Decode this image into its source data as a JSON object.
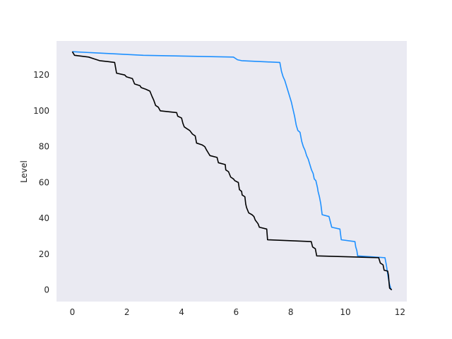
{
  "chart_data": {
    "type": "line",
    "title": "",
    "xlabel": "",
    "ylabel": "Level",
    "xlim": [
      -0.58,
      12.25
    ],
    "ylim": [
      -6.5,
      139
    ],
    "x_ticks": [
      0,
      2,
      4,
      6,
      8,
      10,
      12
    ],
    "y_ticks": [
      0,
      20,
      40,
      60,
      80,
      100,
      120
    ],
    "grid": false,
    "background": "#eaeaf2",
    "series": [
      {
        "color": "#1e90ff",
        "points": [
          [
            0.0,
            133
          ],
          [
            2.6,
            131
          ],
          [
            5.9,
            130
          ],
          [
            6.05,
            128.5
          ],
          [
            6.2,
            128
          ],
          [
            7.6,
            127
          ],
          [
            7.66,
            122
          ],
          [
            7.72,
            119
          ],
          [
            7.78,
            117
          ],
          [
            7.84,
            114
          ],
          [
            7.9,
            111
          ],
          [
            7.96,
            108
          ],
          [
            8.02,
            105
          ],
          [
            8.08,
            101
          ],
          [
            8.14,
            97
          ],
          [
            8.2,
            92
          ],
          [
            8.26,
            89
          ],
          [
            8.34,
            88
          ],
          [
            8.4,
            83
          ],
          [
            8.46,
            80
          ],
          [
            8.52,
            78
          ],
          [
            8.58,
            75
          ],
          [
            8.64,
            73
          ],
          [
            8.7,
            70
          ],
          [
            8.76,
            67
          ],
          [
            8.82,
            65
          ],
          [
            8.86,
            62
          ],
          [
            8.92,
            61
          ],
          [
            8.98,
            57
          ],
          [
            9.0,
            55
          ],
          [
            9.05,
            52
          ],
          [
            9.1,
            48
          ],
          [
            9.15,
            42
          ],
          [
            9.4,
            41
          ],
          [
            9.5,
            35
          ],
          [
            9.8,
            34
          ],
          [
            9.85,
            28
          ],
          [
            10.35,
            27
          ],
          [
            10.38,
            24
          ],
          [
            10.42,
            22
          ],
          [
            10.45,
            19
          ],
          [
            11.45,
            18
          ],
          [
            11.5,
            14
          ],
          [
            11.54,
            10
          ],
          [
            11.58,
            6
          ],
          [
            11.62,
            3
          ],
          [
            11.68,
            0
          ]
        ]
      },
      {
        "color": "#000000",
        "points": [
          [
            0.0,
            133
          ],
          [
            0.08,
            131
          ],
          [
            0.6,
            130
          ],
          [
            0.8,
            129
          ],
          [
            1.0,
            128
          ],
          [
            1.3,
            127.5
          ],
          [
            1.55,
            127
          ],
          [
            1.62,
            121
          ],
          [
            1.92,
            120
          ],
          [
            1.98,
            119
          ],
          [
            2.2,
            118
          ],
          [
            2.28,
            115
          ],
          [
            2.48,
            114
          ],
          [
            2.52,
            113
          ],
          [
            2.7,
            112
          ],
          [
            2.84,
            111
          ],
          [
            2.92,
            108
          ],
          [
            2.98,
            106
          ],
          [
            3.05,
            103
          ],
          [
            3.15,
            102
          ],
          [
            3.22,
            100
          ],
          [
            3.82,
            99
          ],
          [
            3.86,
            97
          ],
          [
            4.0,
            96
          ],
          [
            4.05,
            93
          ],
          [
            4.1,
            91
          ],
          [
            4.2,
            90
          ],
          [
            4.3,
            89
          ],
          [
            4.4,
            87
          ],
          [
            4.5,
            86
          ],
          [
            4.55,
            82
          ],
          [
            4.75,
            81
          ],
          [
            4.85,
            80
          ],
          [
            4.92,
            78
          ],
          [
            4.96,
            77
          ],
          [
            5.04,
            75
          ],
          [
            5.3,
            74
          ],
          [
            5.35,
            71
          ],
          [
            5.6,
            70
          ],
          [
            5.62,
            67
          ],
          [
            5.72,
            66
          ],
          [
            5.8,
            63
          ],
          [
            5.9,
            62
          ],
          [
            5.95,
            61
          ],
          [
            6.08,
            60
          ],
          [
            6.12,
            56
          ],
          [
            6.2,
            55
          ],
          [
            6.22,
            53
          ],
          [
            6.32,
            52
          ],
          [
            6.35,
            48
          ],
          [
            6.38,
            46
          ],
          [
            6.46,
            43
          ],
          [
            6.58,
            42
          ],
          [
            6.65,
            41
          ],
          [
            6.7,
            39
          ],
          [
            6.8,
            37
          ],
          [
            6.85,
            35
          ],
          [
            7.12,
            34
          ],
          [
            7.15,
            28
          ],
          [
            8.75,
            27
          ],
          [
            8.8,
            24
          ],
          [
            8.9,
            23
          ],
          [
            8.95,
            19
          ],
          [
            11.22,
            18
          ],
          [
            11.28,
            15
          ],
          [
            11.38,
            14
          ],
          [
            11.42,
            11
          ],
          [
            11.55,
            10.5
          ],
          [
            11.58,
            8
          ],
          [
            11.6,
            4
          ],
          [
            11.62,
            1
          ],
          [
            11.7,
            0
          ]
        ]
      }
    ]
  }
}
